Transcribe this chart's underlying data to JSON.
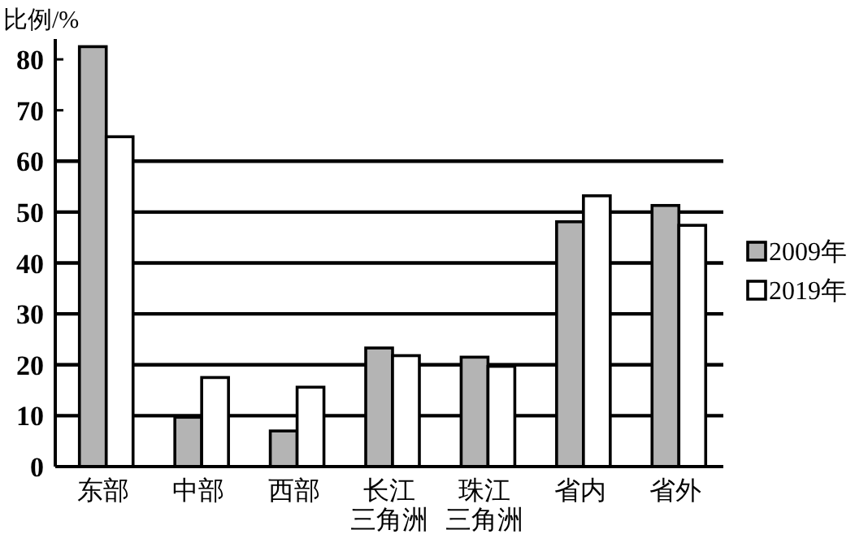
{
  "chart_data": {
    "type": "bar",
    "ylabel": "比例/%",
    "categories": [
      "东部",
      "中部",
      "西部",
      "长江三角洲",
      "珠江三角洲",
      "省内",
      "省外"
    ],
    "series": [
      {
        "name": "2009年",
        "color": "#b4b4b4",
        "values": [
          82.5,
          9.7,
          7.0,
          23.3,
          21.5,
          48.1,
          51.3
        ]
      },
      {
        "name": "2019年",
        "color": "#ffffff",
        "values": [
          64.8,
          17.5,
          15.6,
          21.8,
          19.7,
          53.2,
          47.4
        ]
      }
    ],
    "ylim": [
      0,
      84
    ],
    "yticks": [
      0,
      10,
      20,
      30,
      40,
      50,
      60,
      70,
      80
    ],
    "ref_lines": [
      {
        "axis": "y",
        "value": 10,
        "color": "#000000"
      },
      {
        "axis": "y",
        "value": 20,
        "color": "#000000"
      },
      {
        "axis": "y",
        "value": 30,
        "color": "#000000"
      },
      {
        "axis": "y",
        "value": 40,
        "color": "#000000"
      },
      {
        "axis": "y",
        "value": 50,
        "color": "#000000"
      },
      {
        "axis": "y",
        "value": 60,
        "color": "#000000"
      }
    ],
    "legend": "right"
  }
}
